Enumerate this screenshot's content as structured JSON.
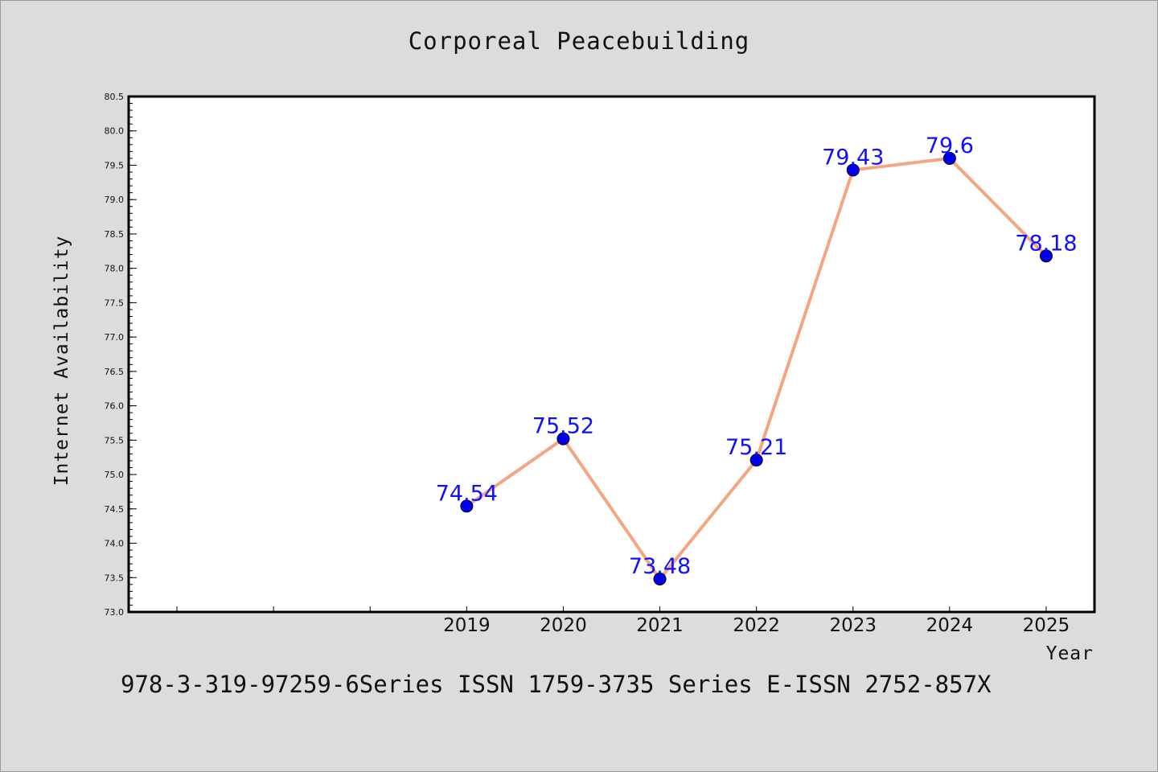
{
  "title": "Corporeal Peacebuilding",
  "footer": "978-3-319-97259-6Series ISSN 1759-3735 Series E-ISSN 2752-857X",
  "chart_data": {
    "type": "line",
    "title": "Corporeal Peacebuilding",
    "xlabel": "Year",
    "ylabel": "Internet Availability",
    "x": [
      2019,
      2020,
      2021,
      2022,
      2023,
      2024,
      2025
    ],
    "x_tick_labels": [
      "2019",
      "2020",
      "2021",
      "2022",
      "2023",
      "2024",
      "2025"
    ],
    "series": [
      {
        "values": [
          74.54,
          75.52,
          73.48,
          75.21,
          79.43,
          79.6,
          78.18
        ],
        "labels": [
          "74.54",
          "75.52",
          "73.48",
          "75.21",
          "79.43",
          "79.6",
          "78.18"
        ],
        "line_color": "#f4a582",
        "marker_color": "#0000ee"
      }
    ],
    "xlim": [
      2015.5,
      2025.5
    ],
    "ylim": [
      73.0,
      80.5
    ],
    "y_tick_labels": [
      "73.0",
      "73.5",
      "74.0",
      "74.5",
      "75.0",
      "75.5",
      "76.0",
      "76.5",
      "77.0",
      "77.5",
      "78.0",
      "78.5",
      "79.0",
      "79.5",
      "80.0",
      "80.5"
    ],
    "grid": false,
    "legend": "none"
  }
}
